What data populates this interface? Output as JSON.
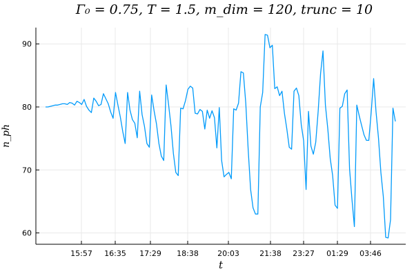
{
  "chart_data": {
    "type": "line",
    "title": "Γ₀ = 0.75, T = 1.5, m_dim = 120, trunc = 10",
    "xlabel": "t",
    "ylabel": "n_ph",
    "x_tick_labels": [
      "15:57",
      "16:35",
      "17:29",
      "18:38",
      "20:03",
      "21:38",
      "23:27",
      "01:29",
      "03:46"
    ],
    "y_ticks": [
      60,
      70,
      80,
      90
    ],
    "ylim": [
      58.2,
      92.6
    ],
    "grid": true,
    "legend": "none",
    "color": "#009AFA",
    "series": [
      {
        "values": [
          80.0,
          80.0,
          80.1,
          80.2,
          80.3,
          80.3,
          80.4,
          80.5,
          80.5,
          80.4,
          80.7,
          80.6,
          80.3,
          80.9,
          80.7,
          80.4,
          81.2,
          80.1,
          79.5,
          79.1,
          81.4,
          80.9,
          80.2,
          80.4,
          82.1,
          81.3,
          80.5,
          79.2,
          78.2,
          82.3,
          80.3,
          78.4,
          76.1,
          74.2,
          82.3,
          79.5,
          78.0,
          77.4,
          75.1,
          82.5,
          78.8,
          76.9,
          74.2,
          73.6,
          81.9,
          79.4,
          77.3,
          74.2,
          72.2,
          71.5,
          83.5,
          80.4,
          77.0,
          72.6,
          69.6,
          69.1,
          79.8,
          79.7,
          81.0,
          82.8,
          83.3,
          83.0,
          79.0,
          78.9,
          79.6,
          79.3,
          76.5,
          79.5,
          78.2,
          79.4,
          78.3,
          73.5,
          79.9,
          71.5,
          68.9,
          69.3,
          69.6,
          68.6,
          79.7,
          79.5,
          80.6,
          85.6,
          85.4,
          80.6,
          73.2,
          66.9,
          64.0,
          63.0,
          63.0,
          80.0,
          82.3,
          91.5,
          91.4,
          89.4,
          89.8,
          82.9,
          83.2,
          81.8,
          82.5,
          79.0,
          76.5,
          73.6,
          73.3,
          82.5,
          83.0,
          81.8,
          77.2,
          74.6,
          66.9,
          79.3,
          73.8,
          72.5,
          74.4,
          79.3,
          85.3,
          88.9,
          80.3,
          76.5,
          71.8,
          69.1,
          64.4,
          63.9,
          79.8,
          80.1,
          82.1,
          82.7,
          70.2,
          65.3,
          61.0,
          80.3,
          78.6,
          77.1,
          75.6,
          74.7,
          74.7,
          79.2,
          84.5,
          79.2,
          75.1,
          69.6,
          65.8,
          59.3,
          59.2,
          62.1,
          79.8,
          77.7
        ]
      }
    ]
  }
}
